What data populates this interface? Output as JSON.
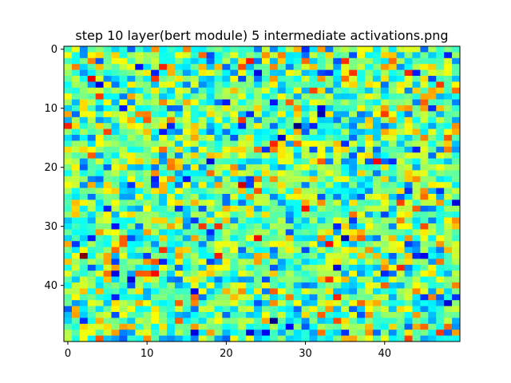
{
  "chart_data": {
    "type": "heatmap",
    "title": "step 10 layer(bert module) 5 intermediate activations.png",
    "xlabel": "",
    "ylabel": "",
    "rows": 50,
    "cols": 50,
    "colormap": "jet",
    "xlim": [
      -0.5,
      49.5
    ],
    "ylim": [
      49.5,
      -0.5
    ],
    "x_ticks": [
      0,
      10,
      20,
      30,
      40
    ],
    "y_ticks": [
      0,
      10,
      20,
      30,
      40
    ],
    "x_tick_labels": [
      "0",
      "10",
      "20",
      "30",
      "40"
    ],
    "y_tick_labels": [
      "0",
      "10",
      "20",
      "30",
      "40"
    ],
    "grid": false,
    "values_note": "",
    "values": []
  }
}
